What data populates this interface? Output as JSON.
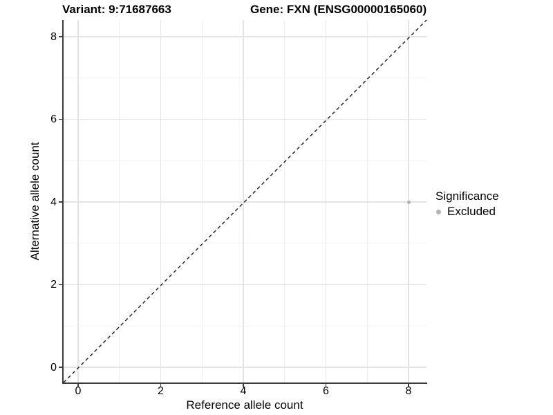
{
  "chart_data": {
    "type": "scatter",
    "title_left": "Variant: 9:71687663",
    "title_right": "Gene: FXN (ENSG00000165060)",
    "xlabel": "Reference allele count",
    "ylabel": "Alternative allele count",
    "xlim": [
      -0.35,
      8.4
    ],
    "ylim": [
      -0.35,
      8.4
    ],
    "xticks": [
      0,
      2,
      4,
      6,
      8
    ],
    "yticks": [
      0,
      2,
      4,
      6,
      8
    ],
    "minor_xticks": [
      1,
      3,
      5,
      7
    ],
    "minor_yticks": [
      1,
      3,
      5,
      7
    ],
    "grid": "major and minor gridlines on white panel",
    "reference_line": {
      "type": "identity",
      "slope": 1,
      "intercept": 0,
      "style": "dashed",
      "color": "#1a1a1a"
    },
    "series": [
      {
        "name": "Excluded",
        "color": "#b3b3b3",
        "points": [
          {
            "x": 8,
            "y": 4
          }
        ]
      }
    ],
    "legend": {
      "title": "Significance",
      "position": "right",
      "entries": [
        {
          "label": "Excluded",
          "color": "#b3b3b3"
        }
      ]
    }
  },
  "colors": {
    "background": "#ffffff",
    "grid_major": "#e3e3e3",
    "grid_minor": "#f1f1f1",
    "axis_line": "#3c3c3c",
    "text": "#000000",
    "point": "#b3b3b3"
  }
}
